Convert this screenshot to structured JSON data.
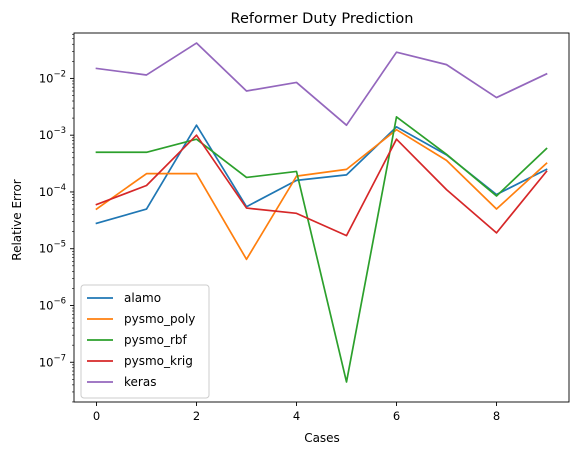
{
  "chart_data": {
    "type": "line",
    "title": "Reformer Duty Prediction",
    "xlabel": "Cases",
    "ylabel": "Relative Error",
    "y_scale": "log",
    "x_range": [
      -0.45,
      9.45
    ],
    "y_range_log10": [
      -7.7,
      -1.2
    ],
    "x_ticks": [
      0,
      2,
      4,
      6,
      8
    ],
    "x_tick_labels": [
      "0",
      "2",
      "4",
      "6",
      "8"
    ],
    "y_ticks_log10": [
      -7,
      -6,
      -5,
      -4,
      -3,
      -2
    ],
    "y_tick_bases": [
      "10",
      "10",
      "10",
      "10",
      "10",
      "10"
    ],
    "y_tick_exponents": [
      "−7",
      "−6",
      "−5",
      "−4",
      "−3",
      "−2"
    ],
    "grid": false,
    "legend_position": "lower-left",
    "x": [
      0,
      1,
      2,
      3,
      4,
      5,
      6,
      7,
      8,
      9
    ],
    "series": [
      {
        "name": "alamo",
        "color": "#1f77b4",
        "values": [
          2.8e-05,
          5e-05,
          0.0015,
          5.5e-05,
          0.00016,
          0.0002,
          0.0014,
          0.00045,
          9e-05,
          0.00025
        ]
      },
      {
        "name": "pysmo_poly",
        "color": "#ff7f0e",
        "values": [
          5e-05,
          0.00021,
          0.00021,
          6.5e-06,
          0.00019,
          0.00025,
          0.00125,
          0.00036,
          5e-05,
          0.00032
        ]
      },
      {
        "name": "pysmo_rbf",
        "color": "#2ca02c",
        "values": [
          0.0005,
          0.0005,
          0.00085,
          0.00018,
          0.00023,
          4.5e-08,
          0.0021,
          0.00046,
          8.5e-05,
          0.00058
        ]
      },
      {
        "name": "pysmo_krig",
        "color": "#d62728",
        "values": [
          6e-05,
          0.00013,
          0.001,
          5.2e-05,
          4.2e-05,
          1.7e-05,
          0.00085,
          0.00011,
          1.9e-05,
          0.00023
        ]
      },
      {
        "name": "keras",
        "color": "#9467bd",
        "values": [
          0.015,
          0.0115,
          0.042,
          0.006,
          0.0085,
          0.0015,
          0.029,
          0.0175,
          0.0046,
          0.012
        ]
      }
    ]
  }
}
